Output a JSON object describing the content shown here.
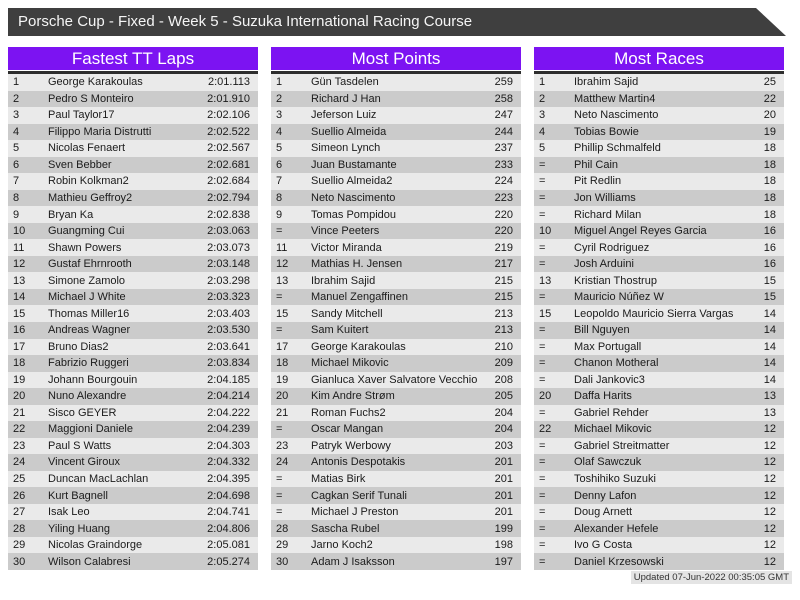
{
  "title": "Porsche Cup - Fixed - Week 5 - Suzuka International Racing Course",
  "updated": "Updated 07-Jun-2022 00:35:05 GMT",
  "colors": {
    "titlebar": "#3f3f3f",
    "accent_purple": "#7c13f2",
    "row_light": "#eaeaea",
    "row_dark": "#cbcbcb",
    "table_rule": "#2d2d2d"
  },
  "boards": [
    {
      "id": "fastest-tt-laps",
      "title": "Fastest TT Laps",
      "rows": [
        [
          "1",
          "George Karakoulas",
          "2:01.113"
        ],
        [
          "2",
          "Pedro S Monteiro",
          "2:01.910"
        ],
        [
          "3",
          "Paul Taylor17",
          "2:02.106"
        ],
        [
          "4",
          "Filippo Maria Distrutti",
          "2:02.522"
        ],
        [
          "5",
          "Nicolas Fenaert",
          "2:02.567"
        ],
        [
          "6",
          "Sven Bebber",
          "2:02.681"
        ],
        [
          "7",
          "Robin Kolkman2",
          "2:02.684"
        ],
        [
          "8",
          "Mathieu Geffroy2",
          "2:02.794"
        ],
        [
          "9",
          "Bryan Ka",
          "2:02.838"
        ],
        [
          "10",
          "Guangming Cui",
          "2:03.063"
        ],
        [
          "11",
          "Shawn Powers",
          "2:03.073"
        ],
        [
          "12",
          "Gustaf Ehrnrooth",
          "2:03.148"
        ],
        [
          "13",
          "Simone Zamolo",
          "2:03.298"
        ],
        [
          "14",
          "Michael J White",
          "2:03.323"
        ],
        [
          "15",
          "Thomas Miller16",
          "2:03.403"
        ],
        [
          "16",
          "Andreas Wagner",
          "2:03.530"
        ],
        [
          "17",
          "Bruno Dias2",
          "2:03.641"
        ],
        [
          "18",
          "Fabrizio Ruggeri",
          "2:03.834"
        ],
        [
          "19",
          "Johann Bourgouin",
          "2:04.185"
        ],
        [
          "20",
          "Nuno Alexandre",
          "2:04.214"
        ],
        [
          "21",
          "Sisco GEYER",
          "2:04.222"
        ],
        [
          "22",
          "Maggioni Daniele",
          "2:04.239"
        ],
        [
          "23",
          "Paul S Watts",
          "2:04.303"
        ],
        [
          "24",
          "Vincent Giroux",
          "2:04.332"
        ],
        [
          "25",
          "Duncan MacLachlan",
          "2:04.395"
        ],
        [
          "26",
          "Kurt Bagnell",
          "2:04.698"
        ],
        [
          "27",
          "Isak Leo",
          "2:04.741"
        ],
        [
          "28",
          "Yiling Huang",
          "2:04.806"
        ],
        [
          "29",
          "Nicolas Graindorge",
          "2:05.081"
        ],
        [
          "30",
          "Wilson Calabresi",
          "2:05.274"
        ]
      ]
    },
    {
      "id": "most-points",
      "title": "Most Points",
      "rows": [
        [
          "1",
          "Gün Tasdelen",
          "259"
        ],
        [
          "2",
          "Richard J Han",
          "258"
        ],
        [
          "3",
          "Jeferson Luiz",
          "247"
        ],
        [
          "4",
          "Suellio Almeida",
          "244"
        ],
        [
          "5",
          "Simeon Lynch",
          "237"
        ],
        [
          "6",
          "Juan Bustamante",
          "233"
        ],
        [
          "7",
          "Suellio Almeida2",
          "224"
        ],
        [
          "8",
          "Neto Nascimento",
          "223"
        ],
        [
          "9",
          "Tomas Pompidou",
          "220"
        ],
        [
          "=",
          "Vince Peeters",
          "220"
        ],
        [
          "11",
          "Victor Miranda",
          "219"
        ],
        [
          "12",
          "Mathias H. Jensen",
          "217"
        ],
        [
          "13",
          "Ibrahim Sajid",
          "215"
        ],
        [
          "=",
          "Manuel Zengaffinen",
          "215"
        ],
        [
          "15",
          "Sandy Mitchell",
          "213"
        ],
        [
          "=",
          "Sam Kuitert",
          "213"
        ],
        [
          "17",
          "George Karakoulas",
          "210"
        ],
        [
          "18",
          "Michael Mikovic",
          "209"
        ],
        [
          "19",
          "Gianluca Xaver Salvatore Vecchio",
          "208"
        ],
        [
          "20",
          "Kim Andre Strøm",
          "205"
        ],
        [
          "21",
          "Roman Fuchs2",
          "204"
        ],
        [
          "=",
          "Oscar Mangan",
          "204"
        ],
        [
          "23",
          "Patryk Werbowy",
          "203"
        ],
        [
          "24",
          "Antonis Despotakis",
          "201"
        ],
        [
          "=",
          "Matias Birk",
          "201"
        ],
        [
          "=",
          "Cagkan Serif Tunali",
          "201"
        ],
        [
          "=",
          "Michael J Preston",
          "201"
        ],
        [
          "28",
          "Sascha Rubel",
          "199"
        ],
        [
          "29",
          "Jarno Koch2",
          "198"
        ],
        [
          "30",
          "Adam J Isaksson",
          "197"
        ]
      ]
    },
    {
      "id": "most-races",
      "title": "Most Races",
      "rows": [
        [
          "1",
          "Ibrahim Sajid",
          "25"
        ],
        [
          "2",
          "Matthew Martin4",
          "22"
        ],
        [
          "3",
          "Neto Nascimento",
          "20"
        ],
        [
          "4",
          "Tobias Bowie",
          "19"
        ],
        [
          "5",
          "Phillip Schmalfeld",
          "18"
        ],
        [
          "=",
          "Phil Cain",
          "18"
        ],
        [
          "=",
          "Pit Redlin",
          "18"
        ],
        [
          "=",
          "Jon Williams",
          "18"
        ],
        [
          "=",
          "Richard Milan",
          "18"
        ],
        [
          "10",
          "Miguel Angel Reyes Garcia",
          "16"
        ],
        [
          "=",
          "Cyril Rodriguez",
          "16"
        ],
        [
          "=",
          "Josh Arduini",
          "16"
        ],
        [
          "13",
          "Kristian Thostrup",
          "15"
        ],
        [
          "=",
          "Mauricio Núñez W",
          "15"
        ],
        [
          "15",
          "Leopoldo Mauricio Sierra Vargas",
          "14"
        ],
        [
          "=",
          "Bill Nguyen",
          "14"
        ],
        [
          "=",
          "Max Portugall",
          "14"
        ],
        [
          "=",
          "Chanon Motheral",
          "14"
        ],
        [
          "=",
          "Dali Jankovic3",
          "14"
        ],
        [
          "20",
          "Daffa Harits",
          "13"
        ],
        [
          "=",
          "Gabriel Rehder",
          "13"
        ],
        [
          "22",
          "Michael Mikovic",
          "12"
        ],
        [
          "=",
          "Gabriel Streitmatter",
          "12"
        ],
        [
          "=",
          "Olaf Sawczuk",
          "12"
        ],
        [
          "=",
          "Toshihiko Suzuki",
          "12"
        ],
        [
          "=",
          "Denny Lafon",
          "12"
        ],
        [
          "=",
          "Doug Arnett",
          "12"
        ],
        [
          "=",
          "Alexander Hefele",
          "12"
        ],
        [
          "=",
          "Ivo G Costa",
          "12"
        ],
        [
          "=",
          "Daniel Krzesowski",
          "12"
        ]
      ]
    }
  ]
}
